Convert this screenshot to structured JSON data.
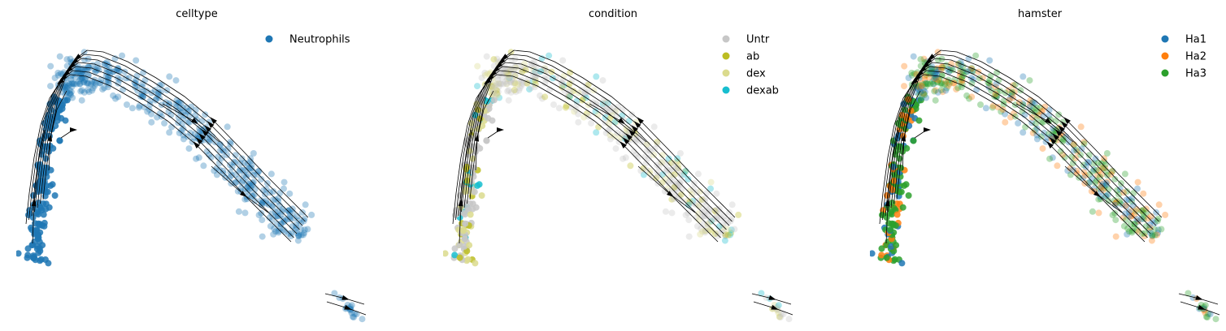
{
  "chart_data": [
    {
      "type": "scatter",
      "title": "celltype",
      "xlabel": "",
      "ylabel": "",
      "grid": false,
      "axes_visible": false,
      "overlay": "velocity-streamlines",
      "legend_position": "top-right",
      "series": [
        {
          "name": "Neutrophils",
          "color": "#1f77b4"
        }
      ]
    },
    {
      "type": "scatter",
      "title": "condition",
      "xlabel": "",
      "ylabel": "",
      "grid": false,
      "axes_visible": false,
      "overlay": "velocity-streamlines",
      "legend_position": "top-right",
      "series": [
        {
          "name": "Untr",
          "color": "#c7c7c7"
        },
        {
          "name": "ab",
          "color": "#bcbd22"
        },
        {
          "name": "dex",
          "color": "#dbdb8d"
        },
        {
          "name": "dexab",
          "color": "#17becf"
        }
      ]
    },
    {
      "type": "scatter",
      "title": "hamster",
      "xlabel": "",
      "ylabel": "",
      "grid": false,
      "axes_visible": false,
      "overlay": "velocity-streamlines",
      "legend_position": "top-right",
      "series": [
        {
          "name": "Ha1",
          "color": "#1f77b4"
        },
        {
          "name": "Ha2",
          "color": "#ff7f0e"
        },
        {
          "name": "Ha3",
          "color": "#2ca02c"
        }
      ]
    }
  ]
}
